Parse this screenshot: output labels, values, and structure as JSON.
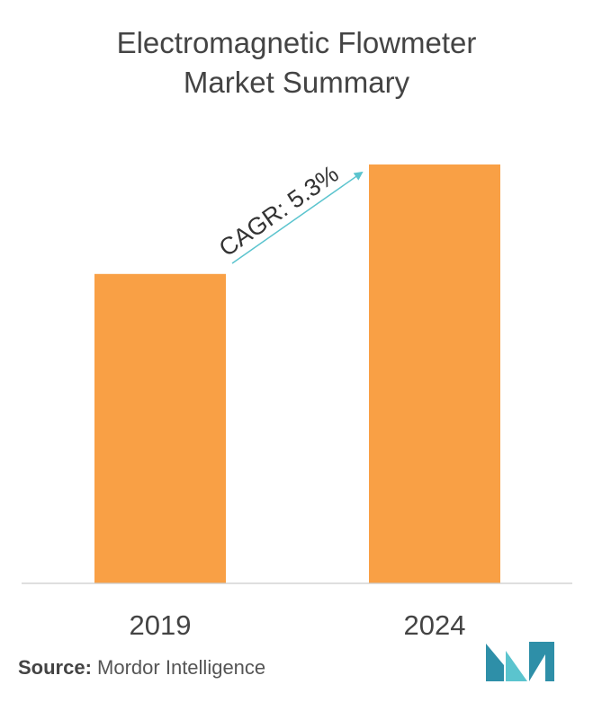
{
  "title": {
    "line1": "Electromagnetic Flowmeter",
    "line2": "Market Summary"
  },
  "chart_data": {
    "type": "bar",
    "title": "Electromagnetic Flowmeter Market Summary",
    "categories": [
      "2019",
      "2024"
    ],
    "values": [
      65,
      88
    ],
    "ylim": [
      0,
      100
    ],
    "grid": false,
    "bar_color": "#F9A045",
    "annotation": {
      "text": "CAGR: 5.3%",
      "arrow_color": "#5BC4CE"
    }
  },
  "source": {
    "label": "Source:",
    "text": "Mordor Intelligence"
  },
  "logo": {
    "icon": "mordor-intelligence-logo",
    "colors": [
      "#2E8FA8",
      "#5BC4CE"
    ]
  }
}
